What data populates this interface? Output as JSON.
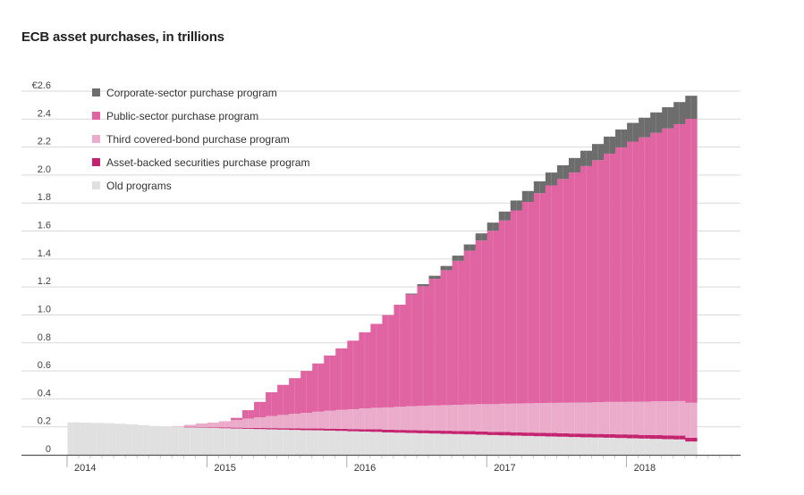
{
  "title": "ECB asset purchases, in trillions",
  "colors": {
    "corporate": "#6d6d6d",
    "public": "#e064a2",
    "covered": "#ebaccb",
    "abs": "#c4246f",
    "old": "#e0e0e0",
    "grid": "#d9d9d9",
    "axis": "#555555"
  },
  "chart_data": {
    "type": "bar",
    "stacked": true,
    "title": "ECB asset purchases, in trillions",
    "xlabel": "",
    "ylabel": "",
    "ylim": [
      0,
      2.6
    ],
    "yticks": [
      0,
      0.2,
      0.4,
      0.6,
      0.8,
      1.0,
      1.2,
      1.4,
      1.6,
      1.8,
      2.0,
      2.2,
      2.4,
      2.6
    ],
    "ytick_labels": [
      "0",
      "0.2",
      "0.4",
      "0.6",
      "0.8",
      "1.0",
      "1.2",
      "1.4",
      "1.6",
      "1.8",
      "2.0",
      "2.2",
      "2.4",
      "€2.6"
    ],
    "xtick_labels": [
      "2014",
      "2015",
      "2016",
      "2017",
      "2018"
    ],
    "grid": true,
    "legend_position": "top-left",
    "x_start": "2014-01",
    "x_frequency": "monthly",
    "categories": [
      "2014-01",
      "2014-02",
      "2014-03",
      "2014-04",
      "2014-05",
      "2014-06",
      "2014-07",
      "2014-08",
      "2014-09",
      "2014-10",
      "2014-11",
      "2014-12",
      "2015-01",
      "2015-02",
      "2015-03",
      "2015-04",
      "2015-05",
      "2015-06",
      "2015-07",
      "2015-08",
      "2015-09",
      "2015-10",
      "2015-11",
      "2015-12",
      "2016-01",
      "2016-02",
      "2016-03",
      "2016-04",
      "2016-05",
      "2016-06",
      "2016-07",
      "2016-08",
      "2016-09",
      "2016-10",
      "2016-11",
      "2016-12",
      "2017-01",
      "2017-02",
      "2017-03",
      "2017-04",
      "2017-05",
      "2017-06",
      "2017-07",
      "2017-08",
      "2017-09",
      "2017-10",
      "2017-11",
      "2017-12",
      "2018-01",
      "2018-02",
      "2018-03",
      "2018-04",
      "2018-05",
      "2018-06"
    ],
    "series": [
      {
        "name": "Old programs",
        "key": "old",
        "values": [
          0.232,
          0.23,
          0.228,
          0.226,
          0.222,
          0.218,
          0.212,
          0.206,
          0.203,
          0.201,
          0.199,
          0.197,
          0.192,
          0.19,
          0.188,
          0.186,
          0.184,
          0.182,
          0.18,
          0.178,
          0.176,
          0.175,
          0.173,
          0.171,
          0.168,
          0.166,
          0.164,
          0.16,
          0.158,
          0.156,
          0.154,
          0.152,
          0.15,
          0.148,
          0.146,
          0.144,
          0.141,
          0.139,
          0.137,
          0.135,
          0.133,
          0.131,
          0.129,
          0.127,
          0.125,
          0.124,
          0.122,
          0.12,
          0.118,
          0.116,
          0.114,
          0.112,
          0.11,
          0.095
        ]
      },
      {
        "name": "Asset-backed securities purchase program",
        "key": "abs",
        "values": [
          0,
          0,
          0,
          0,
          0,
          0,
          0,
          0,
          0,
          0,
          0.001,
          0.002,
          0.004,
          0.005,
          0.006,
          0.007,
          0.008,
          0.009,
          0.01,
          0.011,
          0.012,
          0.013,
          0.014,
          0.015,
          0.016,
          0.017,
          0.018,
          0.019,
          0.02,
          0.021,
          0.021,
          0.022,
          0.022,
          0.022,
          0.023,
          0.023,
          0.023,
          0.024,
          0.024,
          0.024,
          0.025,
          0.025,
          0.025,
          0.025,
          0.025,
          0.025,
          0.026,
          0.026,
          0.026,
          0.026,
          0.027,
          0.027,
          0.027,
          0.027
        ]
      },
      {
        "name": "Third covered-bond purchase program",
        "key": "covered",
        "values": [
          0,
          0,
          0,
          0,
          0,
          0,
          0,
          0,
          0,
          0.004,
          0.014,
          0.025,
          0.034,
          0.045,
          0.055,
          0.066,
          0.076,
          0.086,
          0.095,
          0.104,
          0.112,
          0.12,
          0.128,
          0.135,
          0.142,
          0.148,
          0.154,
          0.16,
          0.165,
          0.17,
          0.175,
          0.179,
          0.183,
          0.187,
          0.191,
          0.195,
          0.198,
          0.202,
          0.206,
          0.209,
          0.212,
          0.215,
          0.218,
          0.221,
          0.224,
          0.227,
          0.23,
          0.232,
          0.235,
          0.238,
          0.241,
          0.244,
          0.247,
          0.25
        ]
      },
      {
        "name": "Public-sector purchase program",
        "key": "public",
        "values": [
          0,
          0,
          0,
          0,
          0,
          0,
          0,
          0,
          0,
          0,
          0,
          0,
          0,
          0,
          0.015,
          0.06,
          0.11,
          0.17,
          0.215,
          0.255,
          0.3,
          0.345,
          0.395,
          0.44,
          0.49,
          0.545,
          0.6,
          0.66,
          0.73,
          0.8,
          0.855,
          0.905,
          0.965,
          1.03,
          1.1,
          1.17,
          1.24,
          1.31,
          1.38,
          1.44,
          1.5,
          1.555,
          1.6,
          1.645,
          1.69,
          1.73,
          1.775,
          1.82,
          1.86,
          1.89,
          1.92,
          1.95,
          1.98,
          2.03
        ]
      },
      {
        "name": "Corporate-sector purchase program",
        "key": "corporate",
        "values": [
          0,
          0,
          0,
          0,
          0,
          0,
          0,
          0,
          0,
          0,
          0,
          0,
          0,
          0,
          0,
          0,
          0,
          0,
          0,
          0,
          0,
          0,
          0,
          0,
          0,
          0,
          0,
          0,
          0,
          0.006,
          0.015,
          0.022,
          0.03,
          0.037,
          0.044,
          0.051,
          0.058,
          0.064,
          0.071,
          0.078,
          0.085,
          0.092,
          0.098,
          0.104,
          0.11,
          0.116,
          0.122,
          0.128,
          0.134,
          0.14,
          0.146,
          0.152,
          0.158,
          0.165
        ]
      }
    ],
    "legend": [
      {
        "label": "Corporate-sector purchase program",
        "key": "corporate"
      },
      {
        "label": "Public-sector purchase program",
        "key": "public"
      },
      {
        "label": "Third covered-bond purchase program",
        "key": "covered"
      },
      {
        "label": "Asset-backed securities purchase program",
        "key": "abs"
      },
      {
        "label": "Old programs",
        "key": "old"
      }
    ]
  }
}
